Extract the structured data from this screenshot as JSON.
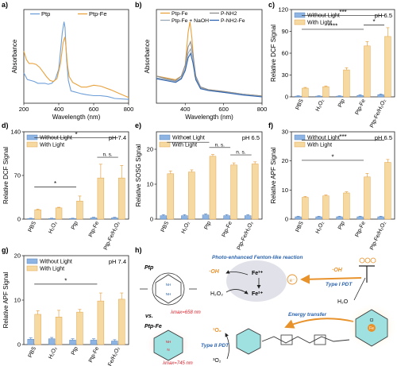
{
  "figure": {
    "panel_letters": [
      "a)",
      "b)",
      "c)",
      "d)",
      "e)",
      "f)",
      "g)",
      "h)"
    ]
  },
  "colors": {
    "without_light": "#8db4e2",
    "with_light": "#f5d9a0",
    "with_light_edge": "#e4a44a",
    "ptp": "#6f9fd8",
    "ptp_fe": "#e8a23c",
    "p_nh2": "#8c8c8c",
    "ptp_fe_naoh": "#9aa7b4",
    "p_nh2_fe": "#2e64b0",
    "red_text": "#e0202a",
    "blue_text": "#2c64b0",
    "orange": "#e8922c"
  },
  "chart_data": [
    {
      "type": "line",
      "panel": "a)",
      "xlabel": "Wavelength (nm)",
      "ylabel": "Absorbance",
      "xlim": [
        200,
        800
      ],
      "xticks": [
        200,
        400,
        600,
        800
      ],
      "legend": "top",
      "series": [
        {
          "name": "Ptp",
          "color": "#6f9fd8",
          "x": [
            200,
            220,
            240,
            260,
            280,
            300,
            320,
            340,
            360,
            380,
            400,
            420,
            430,
            436,
            445,
            455,
            470,
            490,
            510,
            530,
            560,
            600,
            640,
            680,
            720,
            800
          ],
          "y": [
            0.32,
            0.25,
            0.24,
            0.23,
            0.21,
            0.21,
            0.21,
            0.2,
            0.21,
            0.25,
            0.36,
            0.74,
            0.86,
            0.8,
            0.46,
            0.24,
            0.13,
            0.12,
            0.11,
            0.1,
            0.09,
            0.08,
            0.08,
            0.07,
            0.05,
            0.04
          ]
        },
        {
          "name": "Ptp-Fe",
          "color": "#e8a23c",
          "x": [
            200,
            215,
            230,
            250,
            270,
            290,
            310,
            330,
            350,
            370,
            390,
            410,
            425,
            435,
            440,
            450,
            460,
            480,
            500,
            530,
            560,
            600,
            640,
            700,
            750,
            800
          ],
          "y": [
            0.55,
            0.46,
            0.42,
            0.42,
            0.41,
            0.38,
            0.33,
            0.28,
            0.24,
            0.23,
            0.26,
            0.42,
            0.64,
            0.7,
            0.62,
            0.4,
            0.28,
            0.22,
            0.2,
            0.17,
            0.17,
            0.19,
            0.18,
            0.14,
            0.1,
            0.06
          ]
        }
      ]
    },
    {
      "type": "line",
      "panel": "b)",
      "xlabel": "Wavelength (nm)",
      "ylabel": "Absorbance",
      "xlim": [
        250,
        800
      ],
      "xticks": [
        400,
        600,
        800
      ],
      "legend": "top",
      "series": [
        {
          "name": "Ptp-Fe",
          "color": "#e8a23c",
          "x": [
            250,
            300,
            350,
            380,
            400,
            415,
            425,
            435,
            450,
            480,
            520,
            600,
            700,
            800
          ],
          "y": [
            0.3,
            0.28,
            0.26,
            0.3,
            0.42,
            0.78,
            0.9,
            0.72,
            0.3,
            0.17,
            0.15,
            0.13,
            0.1,
            0.08
          ]
        },
        {
          "name": "P-NH2",
          "color": "#8c8c8c",
          "x": [
            250,
            300,
            350,
            380,
            400,
            415,
            428,
            440,
            455,
            480,
            520,
            600,
            700,
            800
          ],
          "y": [
            0.3,
            0.27,
            0.25,
            0.3,
            0.42,
            0.62,
            0.68,
            0.55,
            0.3,
            0.18,
            0.15,
            0.13,
            0.1,
            0.08
          ]
        },
        {
          "name": "Ptp-Fe + NaOH",
          "color": "#9aa7b4",
          "x": [
            250,
            300,
            350,
            380,
            400,
            415,
            428,
            440,
            455,
            480,
            520,
            600,
            700,
            800
          ],
          "y": [
            0.28,
            0.26,
            0.24,
            0.28,
            0.38,
            0.55,
            0.6,
            0.5,
            0.28,
            0.17,
            0.14,
            0.12,
            0.1,
            0.07
          ]
        },
        {
          "name": "P-NH2-Fe",
          "color": "#2e64b0",
          "x": [
            250,
            300,
            350,
            380,
            400,
            415,
            428,
            440,
            455,
            480,
            520,
            600,
            700,
            800
          ],
          "y": [
            0.27,
            0.25,
            0.23,
            0.27,
            0.36,
            0.5,
            0.55,
            0.45,
            0.26,
            0.16,
            0.14,
            0.12,
            0.09,
            0.07
          ]
        }
      ]
    },
    {
      "type": "bar",
      "panel": "c)",
      "ylabel": "Relative DCF Signal",
      "ylim": [
        0,
        120
      ],
      "yticks": [
        0,
        30,
        60,
        90,
        120
      ],
      "condition": "pH 6.5",
      "categories": [
        "PBS",
        "H₂O₂",
        "Ptp",
        "Ptp-Fe",
        "Ptp-Fe/H₂O₂"
      ],
      "series": [
        {
          "name": "Without Light",
          "values": [
            1,
            1,
            1,
            2,
            3
          ],
          "errors": [
            0.5,
            0.5,
            0.5,
            1,
            1
          ]
        },
        {
          "name": "With Light",
          "values": [
            12,
            14,
            37,
            70,
            83
          ],
          "errors": [
            1,
            1,
            3,
            6,
            12
          ]
        }
      ],
      "significance": [
        {
          "from": 0,
          "to": 4,
          "label": "***"
        },
        {
          "from": 0,
          "to": 3,
          "label": "****"
        },
        {
          "from": 3,
          "to": 4,
          "label": "*"
        }
      ]
    },
    {
      "type": "bar",
      "panel": "d)",
      "ylabel": "Relative DCF Signal",
      "ylim": [
        0,
        140
      ],
      "yticks": [
        0,
        70,
        140
      ],
      "condition": "pH 7.4",
      "categories": [
        "PBS",
        "H₂O₂",
        "Ptp",
        "Ptp-Fe",
        "Ptp-Fe/H₂O₂"
      ],
      "series": [
        {
          "name": "Without Light",
          "values": [
            1,
            1,
            1,
            2,
            2
          ],
          "errors": [
            0.5,
            0.5,
            0.5,
            1,
            1
          ]
        },
        {
          "name": "With Light",
          "values": [
            15,
            18,
            29,
            66,
            66
          ],
          "errors": [
            1,
            1,
            8,
            22,
            20
          ]
        }
      ],
      "significance": [
        {
          "from": 0,
          "to": 4,
          "label": "*"
        },
        {
          "from": 0,
          "to": 2,
          "label": "*"
        },
        {
          "from": 3,
          "to": 4,
          "label": "n. s."
        }
      ]
    },
    {
      "type": "bar",
      "panel": "e)",
      "ylabel": "Relative SOSG Signal",
      "ylim": [
        0,
        25
      ],
      "yticks": [
        0,
        10,
        20
      ],
      "condition": "pH 6.5",
      "categories": [
        "PBS",
        "H₂O₂",
        "Ptp",
        "Ptp-Fe",
        "Ptp-Fe/H₂O₂"
      ],
      "series": [
        {
          "name": "Without Light",
          "values": [
            1,
            1,
            1.2,
            1,
            1
          ],
          "errors": [
            0.3,
            0.3,
            0.3,
            0.3,
            0.3
          ]
        },
        {
          "name": "With Light",
          "values": [
            13,
            13.5,
            18,
            15.5,
            15.8
          ],
          "errors": [
            0.8,
            0.6,
            0.5,
            0.6,
            0.6
          ]
        }
      ],
      "significance": [
        {
          "from": 0,
          "to": 2,
          "label": "*"
        },
        {
          "from": 2,
          "to": 3,
          "label": "n. s."
        },
        {
          "from": 3,
          "to": 4,
          "label": "n. s."
        }
      ]
    },
    {
      "type": "bar",
      "panel": "f)",
      "ylabel": "Relative APF Signal",
      "ylim": [
        0,
        30
      ],
      "yticks": [
        0,
        10,
        20,
        30
      ],
      "condition": "pH 6.5",
      "categories": [
        "PBS",
        "H₂O₂",
        "Ptp",
        "Ptp-Fe",
        "Ptp-Fe/H₂O₂"
      ],
      "series": [
        {
          "name": "Without Light",
          "values": [
            0.8,
            0.8,
            0.8,
            0.8,
            0.8
          ],
          "errors": [
            0.2,
            0.2,
            0.2,
            0.2,
            0.2
          ]
        },
        {
          "name": "With Light",
          "values": [
            7.5,
            8,
            9,
            14.5,
            19.5
          ],
          "errors": [
            0.3,
            0.3,
            0.4,
            1.2,
            1
          ]
        }
      ],
      "significance": [
        {
          "from": 0,
          "to": 4,
          "label": "***"
        },
        {
          "from": 0,
          "to": 3,
          "label": "*"
        }
      ]
    },
    {
      "type": "bar",
      "panel": "g)",
      "ylabel": "Relative APF Signal",
      "ylim": [
        0,
        20
      ],
      "yticks": [
        0,
        10,
        20
      ],
      "condition": "pH 7.4",
      "categories": [
        "PBS",
        "H₂O₂",
        "Ptp",
        "Ptp-Fe",
        "Ptp-Fe/H₂O₂"
      ],
      "series": [
        {
          "name": "Without Light",
          "values": [
            1.2,
            1.3,
            1,
            1,
            0.8
          ],
          "errors": [
            0.3,
            0.3,
            0.3,
            0.3,
            0.3
          ]
        },
        {
          "name": "With Light",
          "values": [
            6.8,
            6.2,
            7.3,
            9.8,
            10.2
          ],
          "errors": [
            0.8,
            1.5,
            0.6,
            1.8,
            1.4
          ]
        }
      ],
      "significance": [
        {
          "from": 0,
          "to": 3,
          "label": "*"
        }
      ]
    }
  ],
  "schematic": {
    "ptp_label": "Ptp",
    "ptp_wavelength": "λmax=658 nm",
    "vs_label": "vs.",
    "ptpfe_label": "Ptp-Fe",
    "ptpfe_wavelength": "λmax=745 nm",
    "fenton_title": "Photo-enhanced Fenton-like reaction",
    "oh_radical": "·OH",
    "fe3": "Fe³⁺",
    "fe2": "Fe²⁺",
    "h2o2": "H₂O₂",
    "electron": "e⁻",
    "type1": "Type I PDT",
    "h2o": "H₂O",
    "oh_right": "·OH",
    "energy_transfer": "Energy transfer",
    "singlet_o2": "¹O₂",
    "type2": "Type II PDT",
    "triplet_o2": "³O₂",
    "center_cl": "Cl",
    "center_fe": "Fe",
    "nh": "NH",
    "n": "N",
    "fe_small": "Fe"
  }
}
